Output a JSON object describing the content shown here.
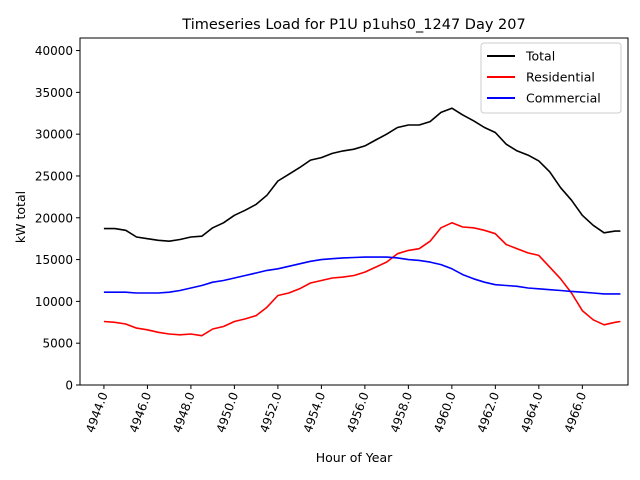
{
  "chart_data": {
    "type": "line",
    "title": "Timeseries Load for P1U p1uhs0_1247  Day 207",
    "xlabel": "Hour of Year",
    "ylabel": "kW total",
    "xlim": [
      4942.9,
      4968.1
    ],
    "ylim": [
      0,
      41500
    ],
    "grid": false,
    "legend_position": "top-right",
    "x_ticks": [
      4944,
      4946,
      4948,
      4950,
      4952,
      4954,
      4956,
      4958,
      4960,
      4962,
      4964,
      4966
    ],
    "x_tick_labels": [
      "4944.0",
      "4946.0",
      "4948.0",
      "4950.0",
      "4952.0",
      "4954.0",
      "4956.0",
      "4958.0",
      "4960.0",
      "4962.0",
      "4964.0",
      "4966.0"
    ],
    "y_ticks": [
      0,
      5000,
      10000,
      15000,
      20000,
      25000,
      30000,
      35000,
      40000
    ],
    "y_tick_labels": [
      "0",
      "5000",
      "10000",
      "15000",
      "20000",
      "25000",
      "30000",
      "35000",
      "40000"
    ],
    "series": [
      {
        "name": "Total",
        "color": "#000000",
        "x": [
          4944.0,
          4944.5,
          4945.0,
          4945.5,
          4946.0,
          4946.5,
          4947.0,
          4947.5,
          4948.0,
          4948.5,
          4949.0,
          4949.5,
          4950.0,
          4950.5,
          4951.0,
          4951.5,
          4952.0,
          4952.5,
          4953.0,
          4953.5,
          4954.0,
          4954.5,
          4955.0,
          4955.5,
          4956.0,
          4956.5,
          4957.0,
          4957.5,
          4958.0,
          4958.5,
          4959.0,
          4959.5,
          4960.0,
          4960.5,
          4961.0,
          4961.5,
          4962.0,
          4962.5,
          4963.0,
          4963.5,
          4964.0,
          4964.5,
          4965.0,
          4965.5,
          4966.0,
          4966.5,
          4967.0,
          4967.5,
          4967.75
        ],
        "values": [
          18700,
          18700,
          18500,
          17700,
          17500,
          17300,
          17200,
          17400,
          17700,
          17800,
          18800,
          19400,
          20300,
          20900,
          21600,
          22700,
          24400,
          25200,
          26000,
          26900,
          27200,
          27700,
          28000,
          28200,
          28600,
          29300,
          30000,
          30800,
          31100,
          31100,
          31500,
          32600,
          33100,
          32300,
          31600,
          30800,
          30200,
          28800,
          28000,
          27500,
          26800,
          25500,
          23600,
          22100,
          20300,
          19100,
          18200,
          18400,
          18400
        ]
      },
      {
        "name": "Residential",
        "color": "#ff0000",
        "x": [
          4944.0,
          4944.5,
          4945.0,
          4945.5,
          4946.0,
          4946.5,
          4947.0,
          4947.5,
          4948.0,
          4948.5,
          4949.0,
          4949.5,
          4950.0,
          4950.5,
          4951.0,
          4951.5,
          4952.0,
          4952.5,
          4953.0,
          4953.5,
          4954.0,
          4954.5,
          4955.0,
          4955.5,
          4956.0,
          4956.5,
          4957.0,
          4957.5,
          4958.0,
          4958.5,
          4959.0,
          4959.5,
          4960.0,
          4960.5,
          4961.0,
          4961.5,
          4962.0,
          4962.5,
          4963.0,
          4963.5,
          4964.0,
          4964.5,
          4965.0,
          4965.5,
          4966.0,
          4966.5,
          4967.0,
          4967.5,
          4967.75
        ],
        "values": [
          7600,
          7500,
          7300,
          6800,
          6600,
          6300,
          6100,
          6000,
          6100,
          5900,
          6700,
          7000,
          7600,
          7900,
          8300,
          9300,
          10700,
          11000,
          11500,
          12200,
          12500,
          12800,
          12900,
          13100,
          13500,
          14100,
          14700,
          15700,
          16100,
          16300,
          17200,
          18800,
          19400,
          18900,
          18800,
          18500,
          18100,
          16800,
          16300,
          15800,
          15500,
          14100,
          12700,
          11000,
          8900,
          7800,
          7200,
          7500,
          7600
        ]
      },
      {
        "name": "Commercial",
        "color": "#0000ff",
        "x": [
          4944.0,
          4944.5,
          4945.0,
          4945.5,
          4946.0,
          4946.5,
          4947.0,
          4947.5,
          4948.0,
          4948.5,
          4949.0,
          4949.5,
          4950.0,
          4950.5,
          4951.0,
          4951.5,
          4952.0,
          4952.5,
          4953.0,
          4953.5,
          4954.0,
          4954.5,
          4955.0,
          4955.5,
          4956.0,
          4956.5,
          4957.0,
          4957.5,
          4958.0,
          4958.5,
          4959.0,
          4959.5,
          4960.0,
          4960.5,
          4961.0,
          4961.5,
          4962.0,
          4962.5,
          4963.0,
          4963.5,
          4964.0,
          4964.5,
          4965.0,
          4965.5,
          4966.0,
          4966.5,
          4967.0,
          4967.5,
          4967.75
        ],
        "values": [
          11100,
          11100,
          11100,
          11000,
          11000,
          11000,
          11100,
          11300,
          11600,
          11900,
          12300,
          12500,
          12800,
          13100,
          13400,
          13700,
          13900,
          14200,
          14500,
          14800,
          15000,
          15100,
          15200,
          15250,
          15300,
          15300,
          15300,
          15200,
          15000,
          14900,
          14700,
          14400,
          13900,
          13200,
          12700,
          12300,
          12000,
          11900,
          11800,
          11600,
          11500,
          11400,
          11300,
          11200,
          11100,
          11000,
          10900,
          10900,
          10900
        ]
      }
    ]
  }
}
